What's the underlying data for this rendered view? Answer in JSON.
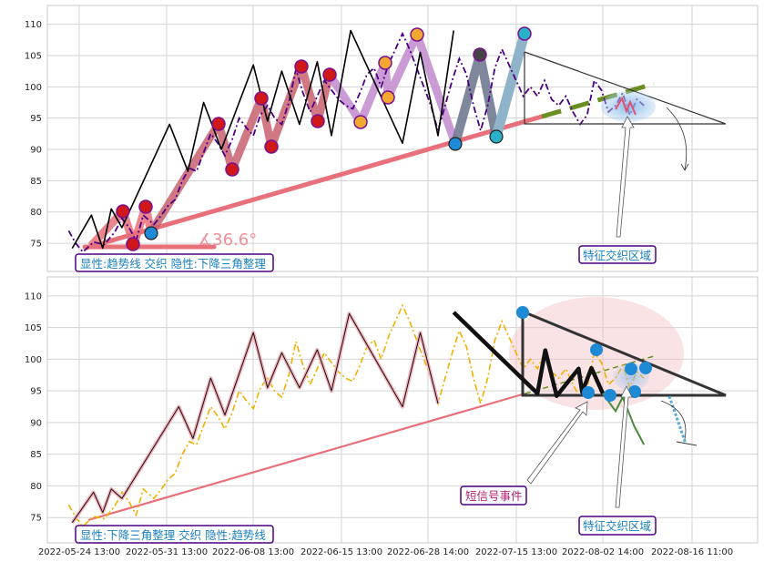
{
  "chart_data": [
    {
      "type": "line",
      "panel": "top",
      "ylim": [
        70.5,
        113
      ],
      "yticks": [
        75,
        80,
        85,
        90,
        95,
        100,
        105,
        110
      ],
      "xlim": [
        0,
        100
      ],
      "x_tick_labels": [],
      "series": [
        {
          "role": "price-dashdot",
          "color": "#4b0082",
          "points": [
            [
              3,
              77
            ],
            [
              4,
              75
            ],
            [
              5,
              73.6
            ],
            [
              6.5,
              75.2
            ],
            [
              8,
              74.8
            ],
            [
              9.5,
              76.8
            ],
            [
              10.5,
              79
            ],
            [
              11.5,
              77.5
            ],
            [
              12.5,
              75.4
            ],
            [
              13.5,
              79.5
            ],
            [
              15,
              78
            ],
            [
              16,
              79.4
            ],
            [
              17,
              81
            ],
            [
              18,
              82
            ],
            [
              19,
              85
            ],
            [
              20,
              87
            ],
            [
              21,
              86.5
            ],
            [
              22,
              89.5
            ],
            [
              23,
              92.5
            ],
            [
              24,
              91
            ],
            [
              25,
              89
            ],
            [
              26,
              91.5
            ],
            [
              27,
              95
            ],
            [
              28,
              93.5
            ],
            [
              29,
              92.2
            ],
            [
              30,
              95.5
            ],
            [
              31,
              97
            ],
            [
              32,
              95
            ],
            [
              33,
              94
            ],
            [
              34,
              97.5
            ],
            [
              35,
              102.8
            ],
            [
              36,
              99
            ],
            [
              37,
              96
            ],
            [
              38,
              98.5
            ],
            [
              39,
              101
            ],
            [
              40,
              99.5
            ],
            [
              41,
              98
            ],
            [
              42,
              97
            ],
            [
              43,
              96.5
            ],
            [
              44,
              99
            ],
            [
              45,
              102
            ],
            [
              46,
              103
            ],
            [
              47,
              100
            ],
            [
              48,
              103.5
            ],
            [
              49,
              106
            ],
            [
              50,
              108.5
            ],
            [
              51,
              106
            ],
            [
              52,
              103
            ],
            [
              53,
              100
            ],
            [
              54,
              97
            ],
            [
              55,
              93
            ],
            [
              56,
              97
            ],
            [
              57,
              101
            ],
            [
              58,
              104.5
            ],
            [
              59,
              102
            ],
            [
              60,
              97
            ],
            [
              61,
              93
            ],
            [
              62,
              97
            ],
            [
              63,
              103
            ],
            [
              64,
              106
            ],
            [
              65,
              103.5
            ],
            [
              66,
              101
            ],
            [
              67,
              98.5
            ],
            [
              68,
              100
            ],
            [
              69,
              98.5
            ],
            [
              70,
              101
            ],
            [
              71,
              98
            ],
            [
              72,
              97
            ],
            [
              73,
              98.5
            ],
            [
              74,
              96
            ],
            [
              75,
              94
            ],
            [
              76,
              95.5
            ],
            [
              77,
              101
            ],
            [
              78,
              99.5
            ],
            [
              79,
              96
            ],
            [
              80,
              97
            ],
            [
              81,
              99
            ],
            [
              82,
              95.5
            ],
            [
              83,
              98
            ],
            [
              84,
              97
            ]
          ]
        },
        {
          "role": "zigzag",
          "color": "#000000",
          "points": [
            [
              3.5,
              74.2
            ],
            [
              6.2,
              79.5
            ],
            [
              7.8,
              74.2
            ],
            [
              9,
              80.5
            ],
            [
              10.5,
              77.5
            ],
            [
              17.2,
              94
            ],
            [
              19.8,
              86.5
            ],
            [
              22,
              97.5
            ],
            [
              24.5,
              90
            ],
            [
              29,
              103.5
            ],
            [
              31,
              94.5
            ],
            [
              33,
              102.5
            ],
            [
              35.5,
              94
            ],
            [
              38,
              104
            ],
            [
              40,
              92.2
            ],
            [
              42.7,
              109
            ],
            [
              50,
              91
            ],
            [
              52.5,
              105.5
            ],
            [
              55,
              92.2
            ],
            [
              57.2,
              109
            ]
          ]
        }
      ],
      "trend_ellipse": {
        "x": [
          82.5
        ],
        "y": [
          98
        ]
      },
      "angle_label": "∡36.6°",
      "annotations": [
        "显性:趋势线 交织 隐性:下降三角整理",
        "特征交织区域"
      ]
    },
    {
      "type": "line",
      "panel": "bottom",
      "ylim": [
        71,
        113
      ],
      "yticks": [
        75,
        80,
        85,
        90,
        95,
        100,
        105,
        110
      ],
      "xlim": [
        0,
        100
      ],
      "x_tick_labels": [
        "2022-05-24 13:00",
        "2022-05-31 13:00",
        "2022-06-08 13:00",
        "2022-06-15 13:00",
        "2022-06-28 14:00",
        "2022-07-15 13:00",
        "2022-08-02 14:00",
        "2022-08-16 11:00"
      ],
      "series": [
        {
          "role": "price-dashdot",
          "color": "#f0b000",
          "points": [
            [
              3,
              77
            ],
            [
              4,
              75
            ],
            [
              5,
              73.6
            ],
            [
              6.5,
              75.2
            ],
            [
              8,
              74.8
            ],
            [
              9.5,
              76.8
            ],
            [
              10.5,
              79
            ],
            [
              11.5,
              77.5
            ],
            [
              12.5,
              75.4
            ],
            [
              13.5,
              79.5
            ],
            [
              15,
              78
            ],
            [
              16,
              79.4
            ],
            [
              17,
              81
            ],
            [
              18,
              82
            ],
            [
              19,
              85
            ],
            [
              20,
              87
            ],
            [
              21,
              86.5
            ],
            [
              22,
              89.5
            ],
            [
              23,
              92.5
            ],
            [
              24,
              91
            ],
            [
              25,
              89
            ],
            [
              26,
              91.5
            ],
            [
              27,
              95
            ],
            [
              28,
              93.5
            ],
            [
              29,
              92.2
            ],
            [
              30,
              95.5
            ],
            [
              31,
              97
            ],
            [
              32,
              95
            ],
            [
              33,
              94
            ],
            [
              34,
              97.5
            ],
            [
              35,
              102.8
            ],
            [
              36,
              99
            ],
            [
              37,
              96
            ],
            [
              38,
              98.5
            ],
            [
              39,
              101
            ],
            [
              40,
              99.5
            ],
            [
              41,
              98
            ],
            [
              42,
              97
            ],
            [
              43,
              96.5
            ],
            [
              44,
              99
            ],
            [
              45,
              102
            ],
            [
              46,
              103
            ],
            [
              47,
              100
            ],
            [
              48,
              103.5
            ],
            [
              49,
              106
            ],
            [
              50,
              108.5
            ],
            [
              51,
              106
            ],
            [
              52,
              103
            ],
            [
              53,
              100
            ],
            [
              54,
              97
            ],
            [
              55,
              93
            ],
            [
              56,
              97
            ],
            [
              57,
              101
            ],
            [
              58,
              104.5
            ],
            [
              59,
              102
            ],
            [
              60,
              97
            ],
            [
              61,
              93
            ],
            [
              62,
              97
            ],
            [
              63,
              103
            ],
            [
              64,
              106
            ],
            [
              65,
              103.5
            ],
            [
              66,
              101
            ],
            [
              67,
              98.5
            ],
            [
              68,
              100
            ],
            [
              69,
              98.5
            ],
            [
              70,
              101
            ],
            [
              71,
              98
            ],
            [
              72,
              97
            ],
            [
              73,
              98.5
            ],
            [
              74,
              96
            ],
            [
              75,
              94
            ],
            [
              76,
              95.5
            ],
            [
              77,
              101
            ],
            [
              78,
              99.5
            ],
            [
              79,
              96
            ],
            [
              80,
              97
            ],
            [
              81,
              99
            ],
            [
              82,
              95.5
            ],
            [
              83,
              98
            ],
            [
              84,
              97
            ]
          ]
        },
        {
          "role": "zigzag",
          "color": "#000000",
          "points": [
            [
              3.5,
              74.2
            ],
            [
              6.5,
              79
            ],
            [
              7.8,
              75.8
            ],
            [
              9,
              79.5
            ],
            [
              10.5,
              78
            ],
            [
              18.5,
              92.5
            ],
            [
              20.5,
              87.5
            ],
            [
              23,
              97
            ],
            [
              25,
              91.2
            ],
            [
              29,
              104.2
            ],
            [
              31,
              95.5
            ],
            [
              33,
              101
            ],
            [
              35.5,
              95.5
            ],
            [
              38,
              101.5
            ],
            [
              40,
              95
            ],
            [
              42.5,
              107.2
            ],
            [
              50,
              92.5
            ],
            [
              52.5,
              104.2
            ],
            [
              55,
              93
            ]
          ]
        },
        {
          "role": "triangle-zigzag",
          "color": "#000000",
          "points": [
            [
              57.2,
              107.4
            ],
            [
              69,
              94.6
            ],
            [
              70.1,
              101.4
            ],
            [
              71.7,
              94.2
            ],
            [
              74.8,
              98.5
            ],
            [
              75.3,
              94.8
            ],
            [
              76.6,
              98.6
            ],
            [
              78.2,
              94.6
            ]
          ]
        },
        {
          "role": "breakout",
          "color": "#4b8b3b",
          "points": [
            [
              78.2,
              94.6
            ],
            [
              80,
              91.8
            ],
            [
              81,
              94
            ],
            [
              82.6,
              89.5
            ],
            [
              84,
              86.5
            ]
          ]
        }
      ],
      "annotations": [
        "显性:下降三角整理 交织 隐性:趋势线",
        "短信号事件",
        "特征交织区域"
      ]
    }
  ]
}
